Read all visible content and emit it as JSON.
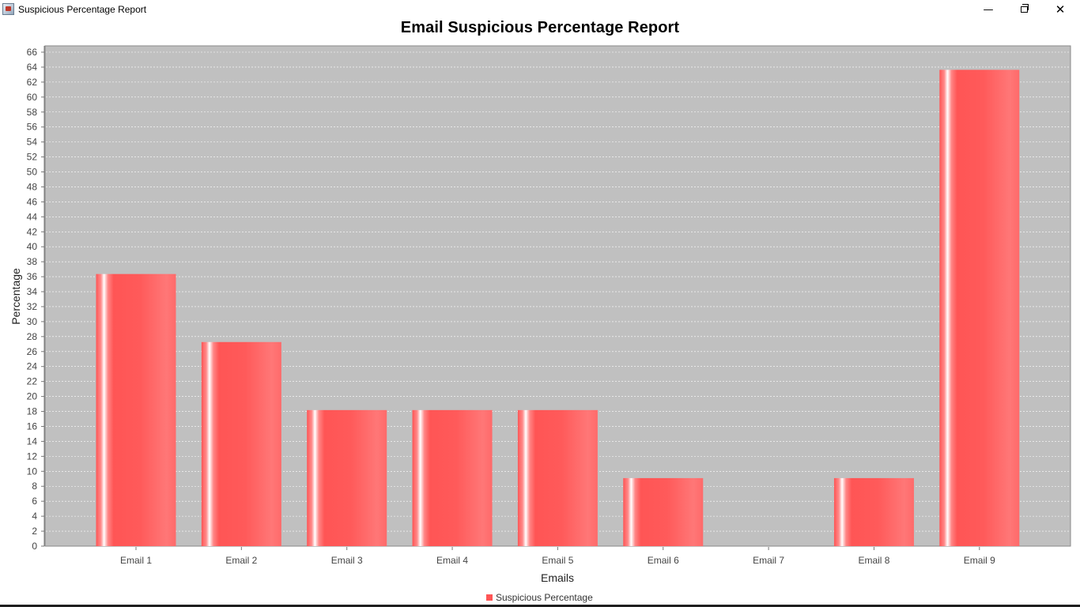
{
  "window": {
    "title": "Suspicious Percentage Report",
    "icon": "java-app-icon",
    "controls": {
      "minimize": "—",
      "maximize": "maximize-icon",
      "close": "✕"
    }
  },
  "colors": {
    "plot_background": "#c0c0c0",
    "bar": "#ff5555",
    "bar_highlight": "#ffffff",
    "gridline": "#ffffff"
  },
  "chart_data": {
    "type": "bar",
    "title": "Email Suspicious Percentage Report",
    "xlabel": "Emails",
    "ylabel": "Percentage",
    "categories": [
      "Email 1",
      "Email 2",
      "Email 3",
      "Email 4",
      "Email 5",
      "Email 6",
      "Email 7",
      "Email 8",
      "Email 9"
    ],
    "series": [
      {
        "name": "Suspicious Percentage",
        "values": [
          36.36,
          27.27,
          18.18,
          18.18,
          18.18,
          9.09,
          0,
          9.09,
          63.64
        ]
      }
    ],
    "ylim": [
      0,
      66
    ],
    "yticks": [
      0,
      2,
      4,
      6,
      8,
      10,
      12,
      14,
      16,
      18,
      20,
      22,
      24,
      26,
      28,
      30,
      32,
      34,
      36,
      38,
      40,
      42,
      44,
      46,
      48,
      50,
      52,
      54,
      56,
      58,
      60,
      62,
      64,
      66
    ],
    "grid": true,
    "legend_position": "bottom-center"
  }
}
